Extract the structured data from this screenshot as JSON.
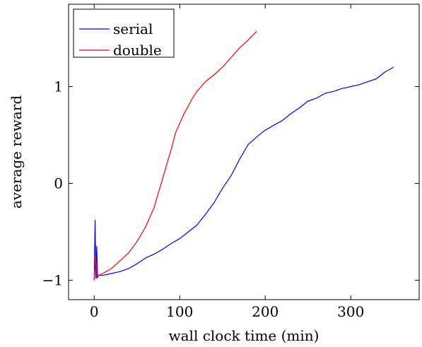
{
  "chart_data": {
    "type": "line",
    "title": "",
    "xlabel": "wall clock time (min)",
    "ylabel": "average reward",
    "xlim": [
      -30,
      380
    ],
    "ylim": [
      -1.2,
      1.85
    ],
    "grid": false,
    "legend_position": "top-left",
    "x_ticks": [
      {
        "value": 0,
        "label": "0"
      },
      {
        "value": 100,
        "label": "100"
      },
      {
        "value": 200,
        "label": "200"
      },
      {
        "value": 300,
        "label": "300"
      }
    ],
    "y_ticks": [
      {
        "value": -1,
        "label": "−1"
      },
      {
        "value": 0,
        "label": "0"
      },
      {
        "value": 1,
        "label": "1"
      }
    ],
    "series": [
      {
        "name": "serial",
        "color": "#0000ff",
        "x": [
          0,
          1,
          2,
          3,
          4,
          5,
          10,
          20,
          30,
          40,
          50,
          60,
          70,
          80,
          90,
          100,
          110,
          120,
          130,
          140,
          150,
          160,
          170,
          180,
          190,
          200,
          210,
          220,
          230,
          240,
          250,
          260,
          270,
          280,
          290,
          300,
          310,
          320,
          330,
          340,
          350
        ],
        "y": [
          -1.0,
          -0.38,
          -0.98,
          -0.65,
          -0.97,
          -0.95,
          -0.95,
          -0.93,
          -0.91,
          -0.88,
          -0.83,
          -0.77,
          -0.73,
          -0.68,
          -0.62,
          -0.57,
          -0.5,
          -0.43,
          -0.32,
          -0.2,
          -0.05,
          0.08,
          0.25,
          0.4,
          0.48,
          0.55,
          0.6,
          0.65,
          0.72,
          0.78,
          0.85,
          0.88,
          0.93,
          0.95,
          0.98,
          1.0,
          1.02,
          1.05,
          1.08,
          1.15,
          1.2
        ]
      },
      {
        "name": "double",
        "color": "#ff0000",
        "x": [
          0,
          1,
          2,
          3,
          5,
          10,
          20,
          30,
          40,
          50,
          60,
          70,
          75,
          80,
          85,
          90,
          95,
          100,
          105,
          110,
          115,
          120,
          125,
          130,
          140,
          150,
          160,
          170,
          180,
          190
        ],
        "y": [
          -1.0,
          -0.85,
          -0.75,
          -0.98,
          -0.95,
          -0.93,
          -0.88,
          -0.8,
          -0.72,
          -0.6,
          -0.45,
          -0.25,
          -0.1,
          0.05,
          0.2,
          0.35,
          0.52,
          0.62,
          0.72,
          0.8,
          0.88,
          0.95,
          1.0,
          1.05,
          1.12,
          1.2,
          1.3,
          1.4,
          1.48,
          1.57
        ]
      }
    ]
  }
}
